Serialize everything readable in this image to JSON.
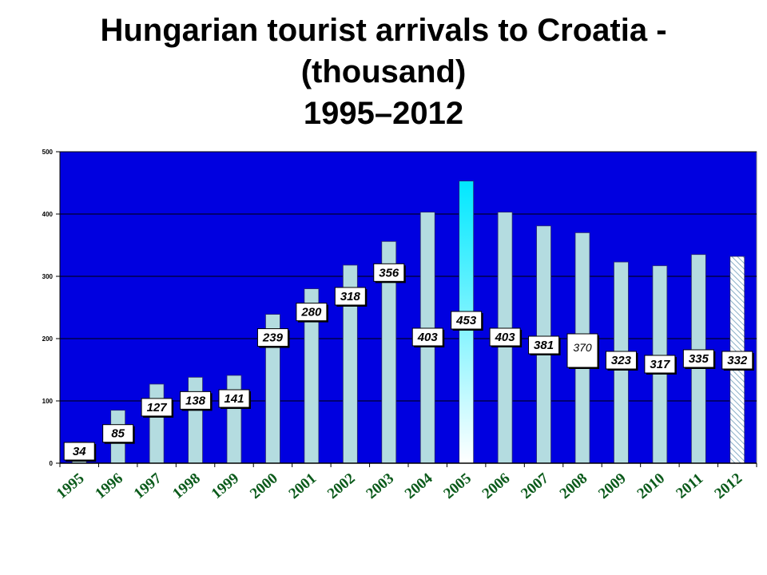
{
  "title_lines": [
    "Hungarian tourist arrivals to Croatia -",
    "(thousand)",
    "1995–2012"
  ],
  "chart_data": {
    "type": "bar",
    "title": "Hungarian tourist arrivals to Croatia - (thousand) 1995–2012",
    "xlabel": "",
    "ylabel": "",
    "categories": [
      "1995",
      "1996",
      "1997",
      "1998",
      "1999",
      "2000",
      "2001",
      "2002",
      "2003",
      "2004",
      "2005",
      "2006",
      "2007",
      "2008",
      "2009",
      "2010",
      "2011",
      "2012"
    ],
    "values": [
      34,
      85,
      127,
      138,
      141,
      239,
      280,
      318,
      356,
      403,
      453,
      403,
      381,
      370,
      323,
      317,
      335,
      332
    ],
    "data_labels": [
      "34",
      "85",
      "127",
      "138",
      "141",
      "239",
      "280",
      "318",
      "356",
      "403",
      "453",
      "403",
      "381",
      "370",
      "323",
      "317",
      "335",
      "332"
    ],
    "yticks": [
      "0",
      "100",
      "200",
      "300",
      "400",
      "500"
    ],
    "ylim": [
      0,
      500
    ],
    "grid": true,
    "legend": "none",
    "colors": {
      "plot_background": "#0000e0",
      "bar": "#b4dce0",
      "highlight_bar_top": "#00e8ff",
      "highlight_bar_bottom": "#ffffff",
      "hatched_bar": "#ffffff",
      "hatch_lines": "#8ab0c8",
      "category_label": "#0a5a1a",
      "grid": "#000000"
    }
  }
}
